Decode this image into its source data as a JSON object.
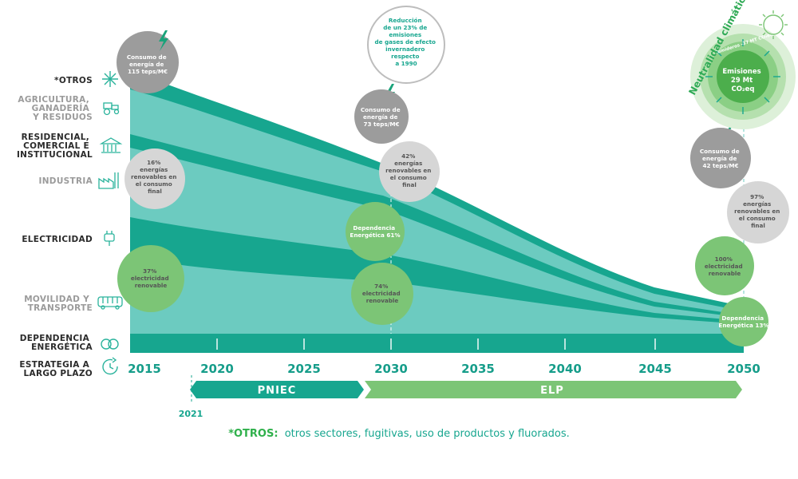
{
  "sectors": {
    "otros": "*OTROS",
    "agri": [
      "AGRICULTURA,",
      "GANADERÍA",
      "Y RESIDUOS"
    ],
    "residencial": [
      "RESIDENCIAL,",
      "COMERCIAL E",
      "INSTITUCIONAL"
    ],
    "industria": "INDUSTRIA",
    "electricidad": "ELECTRICIDAD",
    "movilidad": [
      "MOVILIDAD Y",
      "TRANSPORTE"
    ],
    "dependencia": [
      "DEPENDENCIA",
      "ENERGÉTICA"
    ],
    "estrategia": [
      "ESTRATEGIA A",
      "LARGO PLAZO"
    ]
  },
  "years": [
    "2015",
    "2020",
    "2025",
    "2030",
    "2035",
    "2040",
    "2045",
    "2050"
  ],
  "year_2021": "2021",
  "phases": {
    "pniec": "PNIEC",
    "elp": "ELP"
  },
  "bubbles": {
    "b2015_energy": [
      "Consumo de",
      "energía de",
      "115 teps/M€"
    ],
    "b2015_renew": [
      "16%",
      "energías",
      "renovables en",
      "el consumo",
      "final"
    ],
    "b2015_elec": [
      "37%",
      "electricidad",
      "renovable"
    ],
    "b2030_ghg": [
      "Reducción",
      "de un 23% de",
      "emisiones",
      "de gases de efecto",
      "invernadero",
      "respecto",
      "a 1990"
    ],
    "b2030_energy": [
      "Consumo de",
      "energía de",
      "73 teps/M€"
    ],
    "b2030_renew": [
      "42%",
      "energías",
      "renovables en",
      "el consumo",
      "final"
    ],
    "b2030_dep": [
      "Dependencia",
      "Energética 61%"
    ],
    "b2030_elec": [
      "74%",
      "electricidad",
      "renovable"
    ],
    "b2050_energy": [
      "Consumo de",
      "energía de",
      "42 teps/M€"
    ],
    "b2050_renew": [
      "97%",
      "energías",
      "renovables en",
      "el consumo",
      "final"
    ],
    "b2050_elec": [
      "100%",
      "electricidad",
      "renovable"
    ],
    "b2050_dep": [
      "Dependencia",
      "Energética 13%"
    ]
  },
  "neutralidad": {
    "title": "Neutralidad climática",
    "sumideros": "Sumideros -37 MT CO₂eq",
    "emisiones": [
      "Emisiones",
      "29 Mt",
      "CO₂eq"
    ]
  },
  "footnote": {
    "label": "*OTROS:",
    "text": "otros sectores, fugitivas, uso de productos y fluorados."
  },
  "colors": {
    "teal_dark": "#17a68f",
    "teal_light": "#6ccbc0",
    "green_bubble": "#7cc576",
    "grey_bubble": "#9c9c9c",
    "light_grey_bubble": "#d6d6d6",
    "label_dark": "#2b2b2b",
    "label_grey": "#9b9b9b",
    "icon_teal": "#2ab39c"
  }
}
